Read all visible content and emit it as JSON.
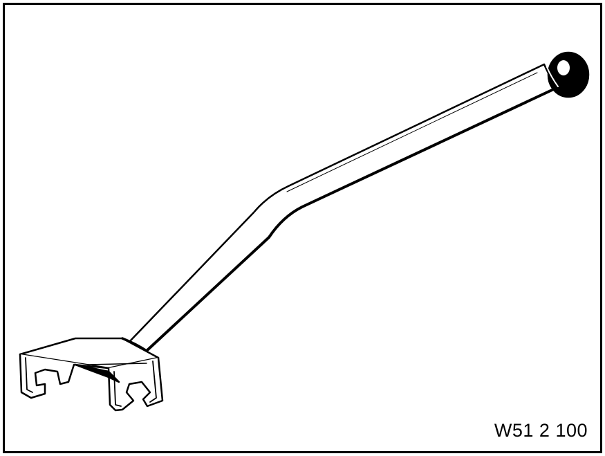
{
  "figure": {
    "id_label": "W51 2 100",
    "subject": "tool-with-long-handle-and-forked-hook"
  },
  "colors": {
    "ink": "#000000",
    "paper": "#ffffff"
  }
}
